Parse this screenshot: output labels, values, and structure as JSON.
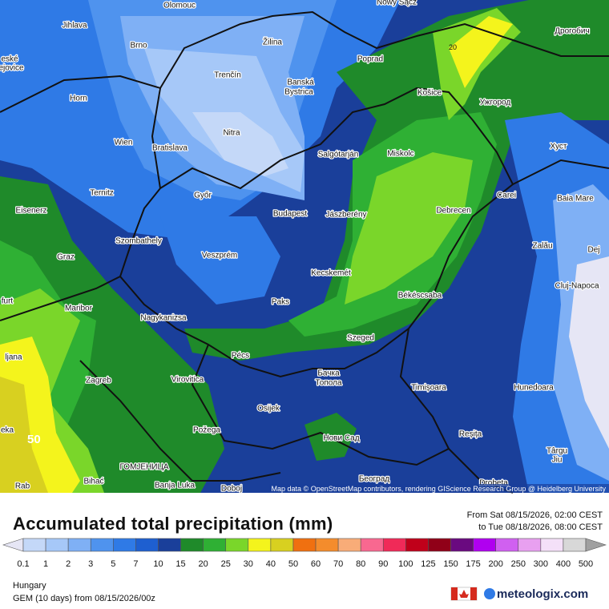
{
  "map": {
    "labels": [
      "Olomouc",
      "Nowy Sącz",
      "Jihlava",
      "Brno",
      "Žilina",
      "Poprad",
      "Дрогобич",
      "eské",
      "ejovice",
      "Trenčín",
      "Banská",
      "Bystrica",
      "Košice",
      "Ужгород",
      "Horn",
      "Nitra",
      "Wien",
      "Bratislava",
      "Salgótarján",
      "Miskolc",
      "Хуст",
      "Ternitz",
      "Győr",
      "Carei",
      "Baia Mare",
      "Eisenerz",
      "Budapest",
      "Jászberény",
      "Debrecen",
      "Szombathely",
      "Zalău",
      "Graz",
      "Veszprém",
      "Dej",
      "Kecskemét",
      "Cluj-Napoca",
      "furt",
      "Paks",
      "Békéscsaba",
      "Maribor",
      "Nagykanizsa",
      "Szeged",
      "ljana",
      "Pécs",
      "Бачка",
      "Топола",
      "Zagreb",
      "Virovitica",
      "Timișoara",
      "Hunedoara",
      "Osijek",
      "eka",
      "Нови Сад",
      "Reșița",
      "Požega",
      "Târgu",
      "Jiu",
      "ГОМЈЕНИЦА",
      "Bihać",
      "Banja Luka",
      "Doboj",
      "Београд",
      "Drobeta",
      "Rab"
    ],
    "contours": [
      "50",
      "20"
    ],
    "attribution": "Map data © OpenStreetMap contributors, rendering GIScience Research Group @ Heidelberg University"
  },
  "header": {
    "title": "Accumulated total precipitation (mm)",
    "period": [
      "From Sat 08/15/2026, 02:00 CEST",
      "to Tue 08/18/2026, 08:00 CEST"
    ]
  },
  "legend": {
    "ticks": [
      0.1,
      1,
      2,
      3,
      5,
      7,
      10,
      15,
      20,
      25,
      30,
      40,
      50,
      60,
      70,
      80,
      90,
      100,
      125,
      150,
      175,
      200,
      250,
      300,
      400,
      500
    ]
  },
  "footer": {
    "region": "Hungary",
    "model": "GEM (10 days) from 08/15/2026/00z",
    "brand": "meteologix.com"
  }
}
